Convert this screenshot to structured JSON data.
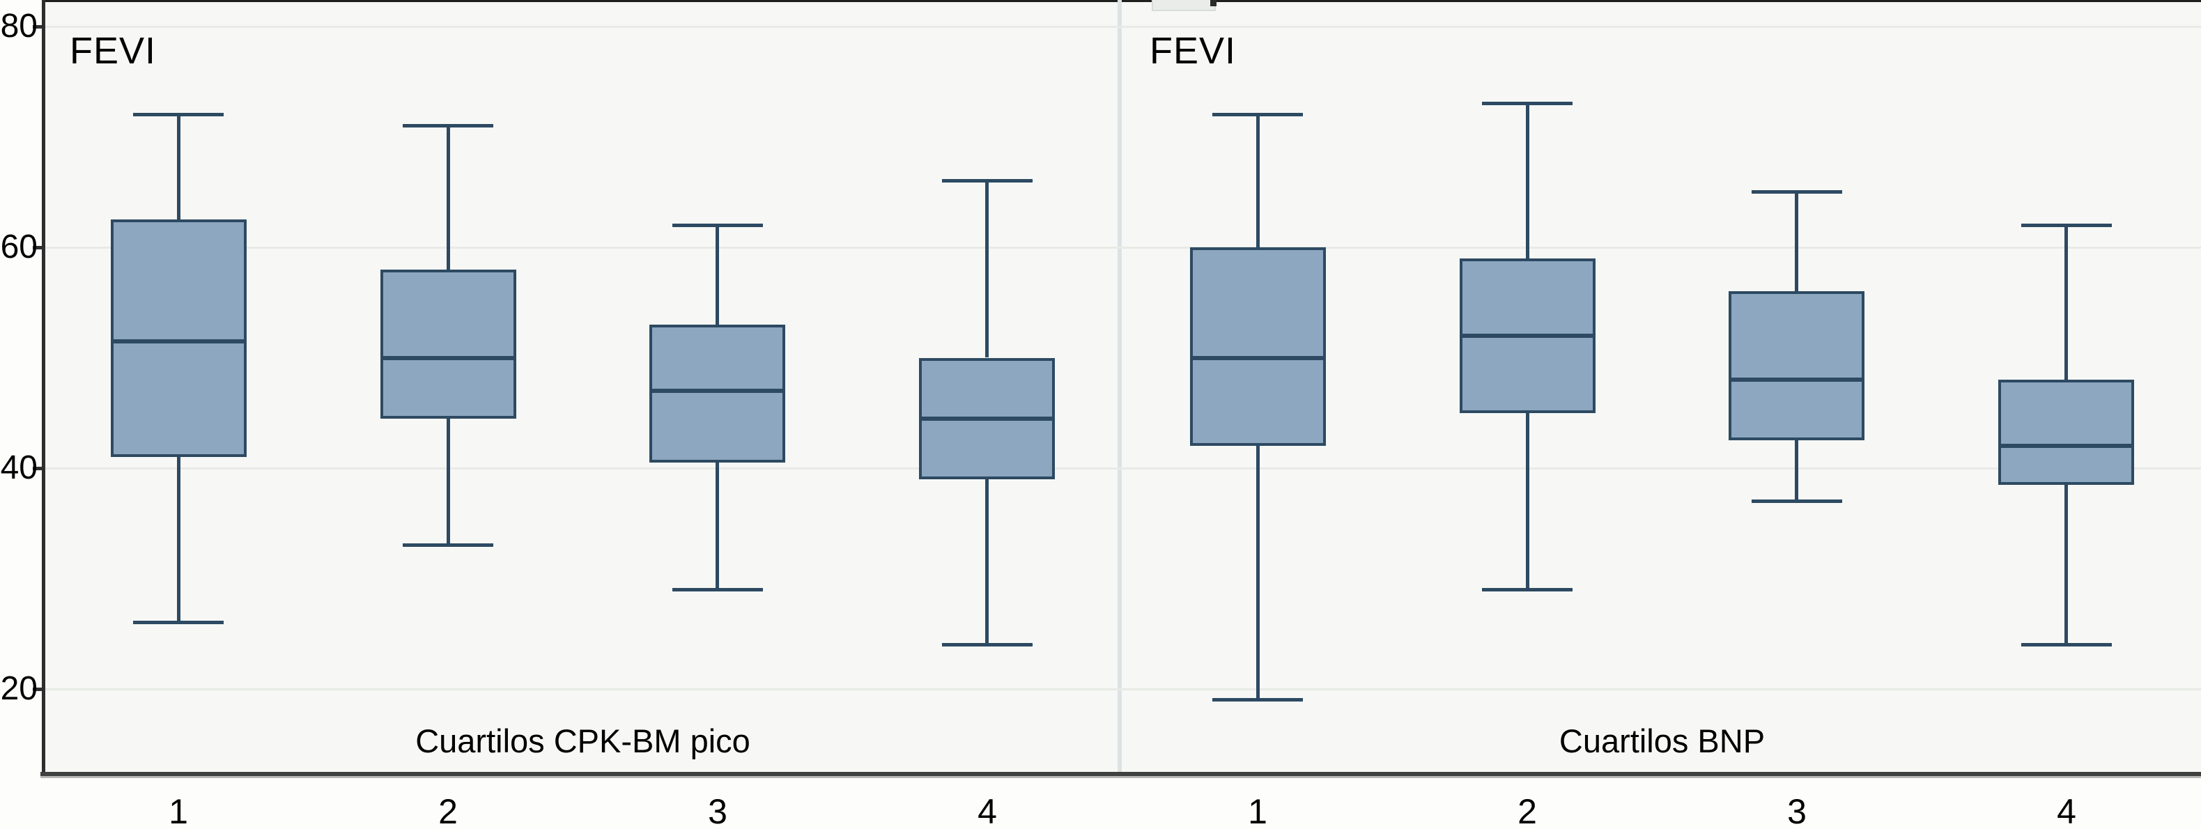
{
  "colors": {
    "box_fill": "#8ca7bf",
    "box_stroke": "#2d4a62",
    "panel_background": "#f7f8f5",
    "page_background": "#fdfdfc",
    "gridline": "#e8eae6",
    "y_axis_line": "#2e2e2e",
    "bottom_axis_line": "#3f4040",
    "panel_divider": "#dde3e5",
    "text": "#000000"
  },
  "chart_data": {
    "type": "boxplot",
    "orientation": "vertical",
    "title": "",
    "legend": "none",
    "grid": "horizontal-light-gridlines",
    "y_axis": {
      "ticks": [
        80,
        60,
        40,
        20
      ],
      "visible_range": [
        12,
        82
      ],
      "label": ""
    },
    "panels": [
      {
        "inner_label": "FEVI",
        "xlabel": "Cuartilos CPK-BM pico",
        "categories": [
          "1",
          "2",
          "3",
          "4"
        ],
        "boxes": [
          {
            "category": "1",
            "min": 26,
            "q1": 41,
            "median": 51.5,
            "q3": 62.5,
            "max": 72
          },
          {
            "category": "2",
            "min": 33,
            "q1": 44.5,
            "median": 50,
            "q3": 58,
            "max": 71
          },
          {
            "category": "3",
            "min": 29,
            "q1": 40.5,
            "median": 47,
            "q3": 53,
            "max": 62
          },
          {
            "category": "4",
            "min": 24,
            "q1": 39,
            "median": 44.5,
            "q3": 50,
            "max": 66
          }
        ]
      },
      {
        "inner_label": "FEVI",
        "xlabel": "Cuartilos BNP",
        "categories": [
          "1",
          "2",
          "3",
          "4"
        ],
        "boxes": [
          {
            "category": "1",
            "min": 19,
            "q1": 42,
            "median": 50,
            "q3": 60,
            "max": 72
          },
          {
            "category": "2",
            "min": 29,
            "q1": 45,
            "median": 52,
            "q3": 59,
            "max": 73
          },
          {
            "category": "3",
            "min": 37,
            "q1": 42.5,
            "median": 48,
            "q3": 56,
            "max": 65
          },
          {
            "category": "4",
            "min": 24,
            "q1": 38.5,
            "median": 42,
            "q3": 48,
            "max": 62
          }
        ]
      }
    ]
  }
}
